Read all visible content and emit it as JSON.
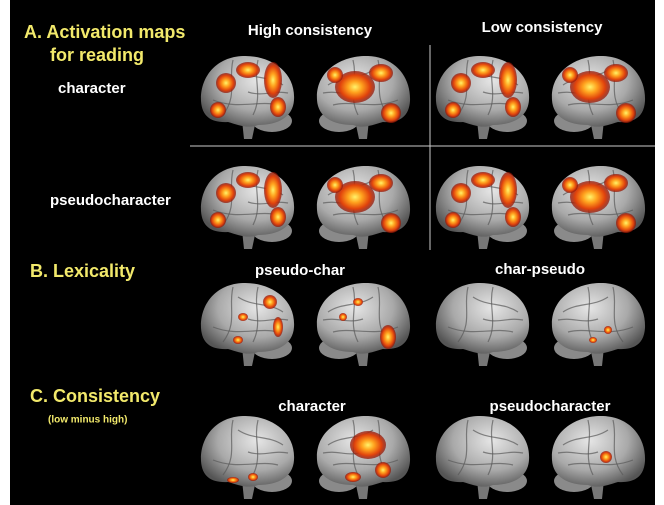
{
  "panel_a": {
    "title_lines": [
      "A. Activation maps",
      "for reading"
    ],
    "columns": [
      "High consistency",
      "Low consistency"
    ],
    "rows": [
      "character",
      "pseudocharacter"
    ]
  },
  "panel_b": {
    "title": "B. Lexicality",
    "columns": [
      "pseudo-char",
      "char-pseudo"
    ]
  },
  "panel_c": {
    "title": "C. Consistency",
    "subtitle": "(low minus high)",
    "columns": [
      "character",
      "pseudocharacter"
    ]
  }
}
